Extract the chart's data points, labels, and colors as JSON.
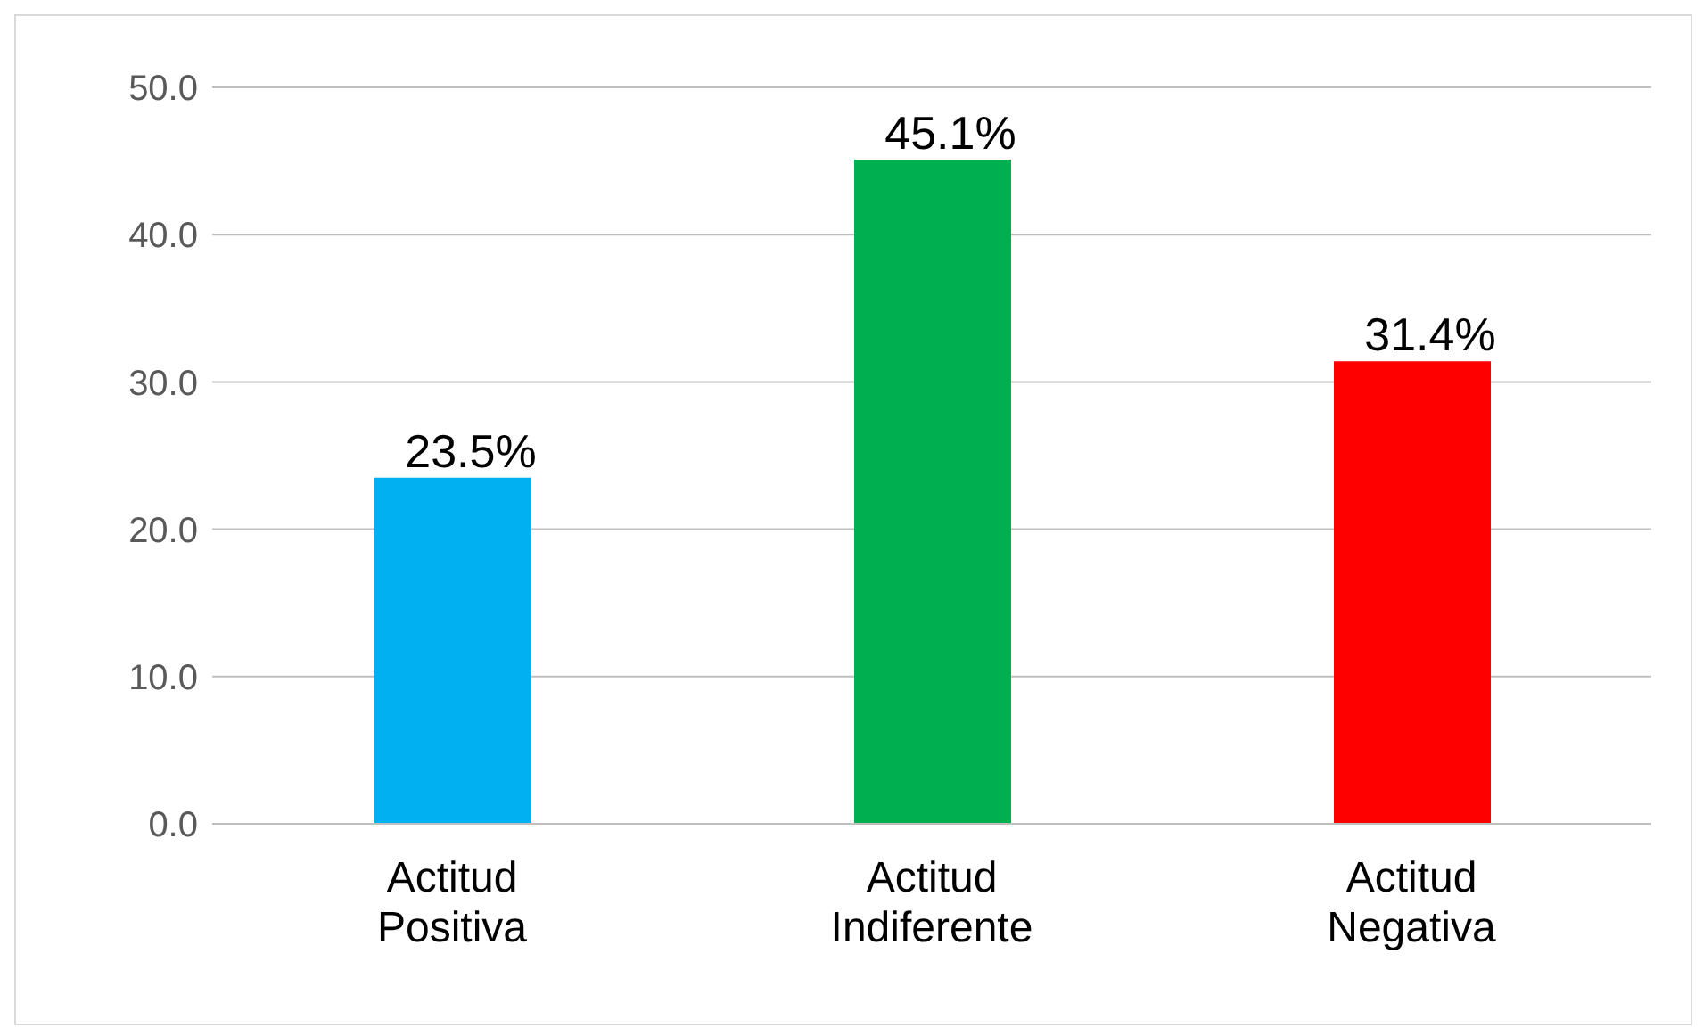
{
  "chart_data": {
    "type": "bar",
    "categories": [
      "Actitud Positiva",
      "Actitud Indiferente",
      "Actitud Negativa"
    ],
    "values": [
      23.5,
      45.1,
      31.4
    ],
    "colors": [
      "#00b0f0",
      "#00b050",
      "#ff0000"
    ],
    "value_labels": [
      "23.5%",
      "45.1%",
      "31.4%"
    ],
    "ylim": [
      0,
      50
    ],
    "yticks": [
      {
        "value": 0,
        "label": "0.0"
      },
      {
        "value": 10,
        "label": "10.0"
      },
      {
        "value": 20,
        "label": "20.0"
      },
      {
        "value": 30,
        "label": "30.0"
      },
      {
        "value": 40,
        "label": "40.0"
      },
      {
        "value": 50,
        "label": "50.0"
      }
    ],
    "grid": "y"
  }
}
